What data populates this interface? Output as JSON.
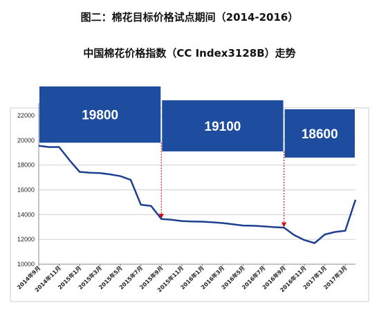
{
  "figure_title": "图二：棉花目标价格试点期间（2014-2016）",
  "chart_data": {
    "type": "line",
    "title": "中国棉花价格指数（CC Index3128B）走势",
    "ylim": [
      10000,
      23000
    ],
    "yticks": [
      10000,
      12000,
      14000,
      16000,
      18000,
      20000,
      22000
    ],
    "xticks": [
      "2014年9月",
      "2014年11月",
      "2015年1月",
      "2015年3月",
      "2015年5月",
      "2015年7月",
      "2015年9月",
      "2015年11月",
      "2016年1月",
      "2016年3月",
      "2016年5月",
      "2016年7月",
      "2016年9月",
      "2016年11月",
      "2017年1月",
      "2017年3月"
    ],
    "x_start": "2014-09",
    "x_end": "2017-04",
    "grid": "horizontal",
    "series": [
      {
        "color": "#1c3f8f",
        "x": [
          "2014-09",
          "2014-10",
          "2014-11",
          "2014-12",
          "2015-01",
          "2015-02",
          "2015-03",
          "2015-04",
          "2015-05",
          "2015-06",
          "2015-07",
          "2015-08",
          "2015-09",
          "2015-10",
          "2015-11",
          "2015-12",
          "2016-01",
          "2016-02",
          "2016-03",
          "2016-04",
          "2016-05",
          "2016-06",
          "2016-07",
          "2016-08",
          "2016-09",
          "2016-10",
          "2016-11",
          "2016-12",
          "2017-01",
          "2017-02",
          "2017-03",
          "2017-04"
        ],
        "values": [
          19550,
          19450,
          19450,
          18400,
          17450,
          17380,
          17350,
          17250,
          17100,
          16800,
          14800,
          14700,
          13650,
          13580,
          13480,
          13450,
          13430,
          13380,
          13320,
          13220,
          13120,
          13100,
          13060,
          12990,
          12950,
          12350,
          11950,
          11700,
          12400,
          12600,
          12700,
          15200
        ]
      }
    ],
    "target_prices": [
      {
        "label": "19800",
        "value": 19800,
        "from": "2014-09",
        "to": "2015-09"
      },
      {
        "label": "19100",
        "value": 19100,
        "from": "2015-09",
        "to": "2016-09"
      },
      {
        "label": "18600",
        "value": 18600,
        "from": "2016-09",
        "to": "2017-04"
      }
    ]
  }
}
